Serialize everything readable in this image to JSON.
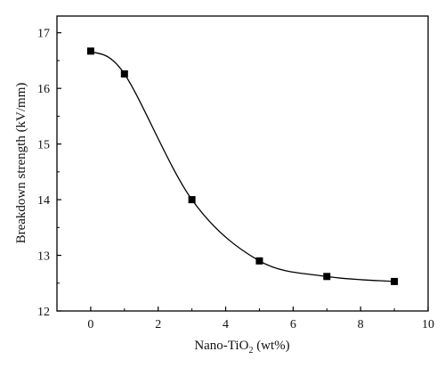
{
  "chart_data": {
    "type": "scatter",
    "xlabel": "Nano-TiO",
    "xlabel_sub": "2",
    "xlabel_tail": " (wt%)",
    "ylabel": "Breakdown strength (kV/mm)",
    "xlim": [
      -1,
      10
    ],
    "ylim": [
      12,
      17.3
    ],
    "xticks": [
      0,
      2,
      4,
      6,
      8,
      10
    ],
    "yticks": [
      12,
      13,
      14,
      15,
      16,
      17
    ],
    "grid": false,
    "series": [
      {
        "x": [
          0,
          1,
          3,
          5,
          7,
          9
        ],
        "y": [
          16.67,
          16.26,
          14.0,
          12.9,
          12.62,
          12.53
        ],
        "fit_curve": true
      }
    ]
  },
  "style": {
    "marker_color": "#000000",
    "line_color": "#000000",
    "axis_color": "#000000"
  }
}
